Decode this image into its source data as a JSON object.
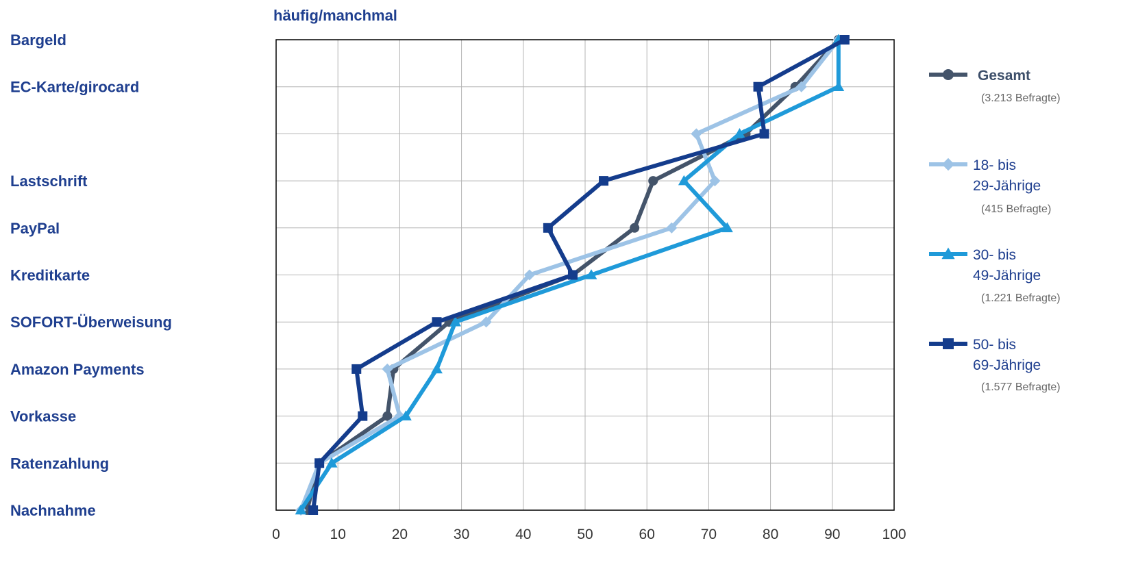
{
  "chart_data": {
    "type": "line",
    "title": "häufig/manchmal",
    "orientation": "horizontal-value-axis",
    "categories": [
      "Bargeld",
      "EC-Karte/girocard",
      "",
      "Lastschrift",
      "PayPal",
      "Kreditkarte",
      "SOFORT-Überweisung",
      "Amazon Payments",
      "Vorkasse",
      "Ratenzahlung",
      "Nachnahme"
    ],
    "xlim": [
      0,
      100
    ],
    "xticks": [
      "0",
      "10",
      "20",
      "30",
      "40",
      "50",
      "60",
      "70",
      "80",
      "90",
      "100"
    ],
    "grid": true,
    "legend_position": "right",
    "series": [
      {
        "name": "Gesamt",
        "subtitle": "(3.213 Befragte)",
        "color": "#44546a",
        "marker": "circle",
        "values": [
          91,
          84,
          76,
          61,
          58,
          48,
          28,
          19,
          18,
          7,
          5
        ]
      },
      {
        "name_line1": "18- bis",
        "name_line2": "29-Jährige",
        "subtitle": "(415 Befragte)",
        "color": "#9dc3e6",
        "marker": "diamond",
        "values": [
          91,
          85,
          68,
          71,
          64,
          41,
          34,
          18,
          20,
          7,
          4
        ]
      },
      {
        "name_line1": "30- bis",
        "name_line2": "49-Jährige",
        "subtitle": "(1.221 Befragte)",
        "color": "#1f9ad9",
        "marker": "triangle",
        "values": [
          91,
          91,
          75,
          66,
          73,
          51,
          29,
          26,
          21,
          9,
          4
        ]
      },
      {
        "name_line1": "50- bis",
        "name_line2": "69-Jährige",
        "subtitle": "(1.577 Befragte)",
        "color": "#143c8c",
        "marker": "square",
        "values": [
          92,
          78,
          79,
          53,
          44,
          48,
          26,
          13,
          14,
          7,
          6
        ]
      }
    ]
  }
}
